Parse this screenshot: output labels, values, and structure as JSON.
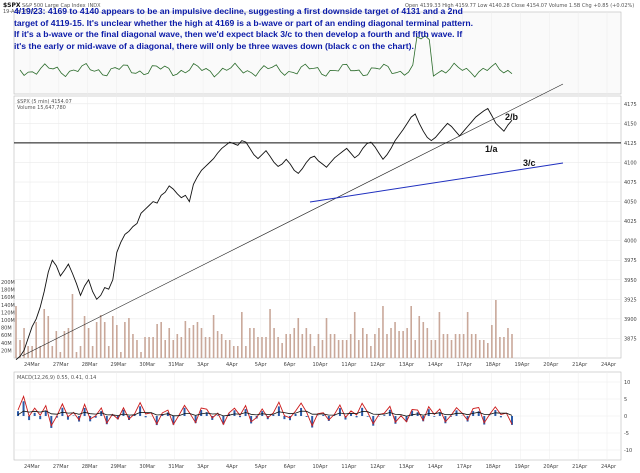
{
  "header": {
    "ticker": "$SPX",
    "name": "S&P 500 Large Cap Index",
    "exchange": "INDX",
    "date": "19-Apr-2023",
    "ohlc": "Open 4139.33  High 4159.77  Low 4140.28  Close 4154.07  Volume 1.5B  Chg +0.85 (+0.02%)",
    "ma_label": "$SPX (5 min) 4154.07",
    "vol_label": "Volume 15,647,780"
  },
  "annotation": {
    "text": "4/19/23:  4169 to 4140 appears to be an impulsive decline, suggesting a first downside target of 4131 and a 2nd target of 4119-15.  It's unclear whether the high at 4169 is a b-wave or part of an ending diagonal terminal pattern.  If it's a b-wave or the final diagonal wave, then we'd expect black 3/c to then develop a fourth and fifth wave.  If it's the early or mid-wave of a diagonal, there will only be three waves down (black c on the chart)."
  },
  "colors": {
    "price": "#111111",
    "trendline_upper": "#222222",
    "trendline_lower": "#1f2fbf",
    "volume": "#c9a89a",
    "hline": "#111111",
    "macd": "#cc1a1a",
    "signal": "#111111",
    "histogram": "#2a5aa8",
    "top_panel": "#2a6b2a",
    "annotation": "#0a1aa8"
  },
  "chart_data": {
    "type": "line",
    "series": [
      {
        "values": [
          3848,
          3852,
          3860,
          3875,
          3890,
          3900,
          3915,
          3935,
          3960,
          3975,
          3968,
          3955,
          3962,
          3970,
          3958,
          3945,
          3930,
          3942,
          3950,
          3935,
          3925,
          3930,
          3940,
          3938,
          3950,
          3985,
          3998,
          4008,
          4012,
          4018,
          4022,
          4035,
          4040,
          4045,
          4050,
          4048,
          4058,
          4062,
          4070,
          4066,
          4060,
          4055,
          4058,
          4050,
          4072,
          4082,
          4090,
          4095,
          4100,
          4105,
          4112,
          4118,
          4122,
          4126,
          4124,
          4122,
          4128,
          4126,
          4118,
          4110,
          4105,
          4110,
          4115,
          4108,
          4100,
          4095,
          4098,
          4104,
          4098,
          4090,
          4086,
          4092,
          4100,
          4106,
          4108,
          4102,
          4098,
          4094,
          4100,
          4106,
          4110,
          4114,
          4118,
          4112,
          4106,
          4110,
          4118,
          4124,
          4126,
          4120,
          4112,
          4104,
          4110,
          4118,
          4128,
          4135,
          4142,
          4150,
          4158,
          4162,
          4150,
          4140,
          4132,
          4128,
          4132,
          4138,
          4144,
          4150,
          4146,
          4140,
          4134,
          4140,
          4146,
          4152,
          4158,
          4162,
          4166,
          4169,
          4160,
          4150,
          4145,
          4140,
          4148,
          4154
        ]
      },
      {
        "values": [
          3,
          8,
          -6,
          4,
          -2,
          5,
          -8,
          3,
          6,
          -4,
          2,
          -3,
          7,
          -5,
          1,
          4,
          -6,
          3,
          -2,
          5,
          -4,
          2,
          6,
          -3,
          1,
          -5,
          4,
          2,
          -6,
          3,
          5,
          -2,
          -4,
          6,
          1,
          -3,
          2,
          -5,
          4,
          3,
          -2,
          5,
          -6,
          1,
          4,
          -3,
          2,
          6,
          -4,
          -1,
          3,
          5,
          -2,
          -6,
          4,
          1,
          -3,
          2,
          5,
          -4,
          3,
          -1,
          6,
          -2,
          -5,
          3,
          1,
          4,
          -6,
          2,
          -3,
          5,
          1,
          -4,
          6,
          -2,
          3,
          -5,
          2,
          4,
          -1,
          -3,
          5,
          2,
          -6,
          3,
          4,
          -2,
          1,
          -5
        ]
      }
    ],
    "annotations": [
      "4/19/23: target 4131",
      "2nd target 4119-15"
    ],
    "labels": {
      "wave_2b": "2/b",
      "wave_1a": "1/a",
      "wave_3c": "3/c"
    },
    "x_ticks": [
      "24Mar",
      "27Mar",
      "28Mar",
      "29Mar",
      "30Mar",
      "31Mar",
      "3Apr",
      "4Apr",
      "5Apr",
      "6Apr",
      "10Apr",
      "11Apr",
      "12Apr",
      "13Apr",
      "14Apr",
      "17Apr",
      "18Apr",
      "19Apr",
      "20Apr",
      "21Apr",
      "24Apr"
    ],
    "y_ticks": [
      "4175",
      "4150",
      "4125",
      "4100",
      "4075",
      "4050",
      "4025",
      "4000",
      "3975",
      "3950",
      "3925",
      "3900",
      "3875"
    ],
    "volume_ticks": [
      "200M",
      "180M",
      "160M",
      "140M",
      "120M",
      "100M",
      "80M",
      "60M",
      "40M",
      "20M"
    ],
    "macd_ticks": [
      "10",
      "5",
      "0",
      "-5",
      "-10"
    ],
    "macd_label": "MACD(12,26,9) 0.55, 0.41, 0.14",
    "hline_value": 4125,
    "ylim": [
      3850,
      4185
    ],
    "grid": true
  }
}
